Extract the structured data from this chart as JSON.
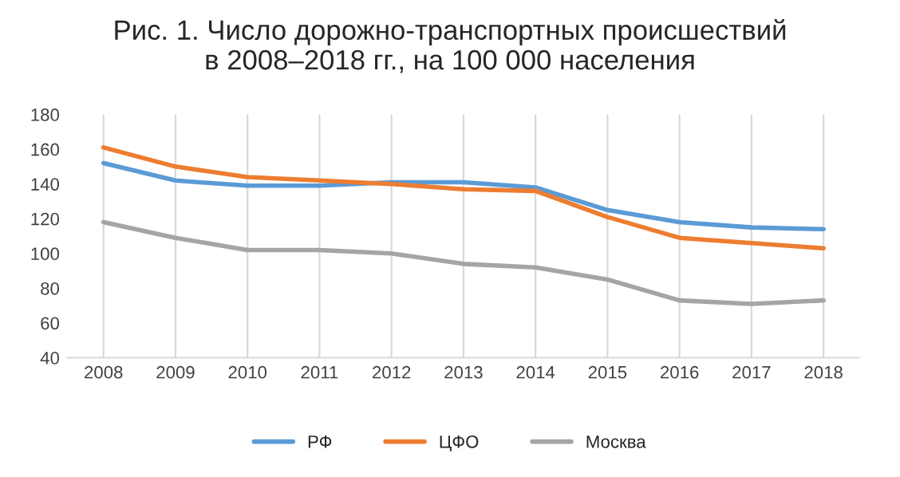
{
  "chart_data": {
    "type": "line",
    "title": "Рис. 1. Число дорожно-транспортных происшествий\nв 2008–2018 гг., на 100 000 населения",
    "categories": [
      "2008",
      "2009",
      "2010",
      "2011",
      "2012",
      "2013",
      "2014",
      "2015",
      "2016",
      "2017",
      "2018"
    ],
    "series": [
      {
        "name": "РФ",
        "color": "#5b9bd5",
        "values": [
          152,
          142,
          139,
          139,
          141,
          141,
          138,
          125,
          118,
          115,
          114
        ]
      },
      {
        "name": "ЦФО",
        "color": "#ed7d31",
        "values": [
          161,
          150,
          144,
          142,
          140,
          137,
          136,
          121,
          109,
          106,
          103
        ]
      },
      {
        "name": "Москва",
        "color": "#a5a5a5",
        "values": [
          118,
          109,
          102,
          102,
          100,
          94,
          92,
          85,
          73,
          71,
          73
        ]
      }
    ],
    "ylim": [
      40,
      180
    ],
    "yticks": [
      40,
      60,
      80,
      100,
      120,
      140,
      160,
      180
    ],
    "grid": "x",
    "legend": "bottom",
    "marker": "none",
    "line_style": "solid"
  }
}
